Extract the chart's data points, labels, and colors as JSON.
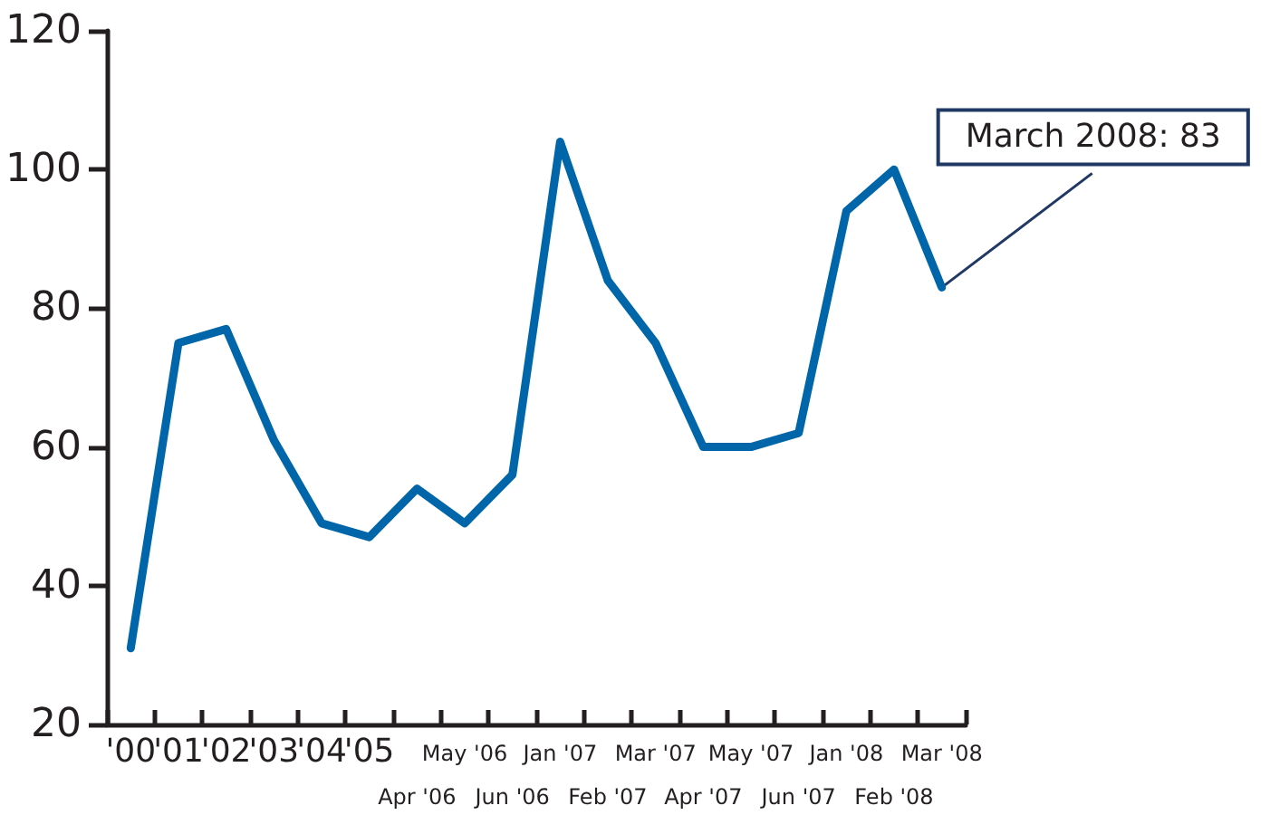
{
  "chart_data": {
    "type": "line",
    "categories": [
      "'00",
      "'01",
      "'02",
      "'03",
      "'04",
      "'05",
      "Apr '06",
      "May '06",
      "Jun '06",
      "Jan '07",
      "Feb '07",
      "Mar '07",
      "Apr '07",
      "May '07",
      "Jun '07",
      "Jan '08",
      "Feb '08",
      "Mar '08"
    ],
    "series": [
      {
        "color": "#0066aa",
        "values": [
          31,
          75,
          77,
          61,
          49,
          47,
          54,
          49,
          56,
          104,
          84,
          75,
          60,
          60,
          62,
          94,
          100,
          83
        ]
      }
    ],
    "ylim": [
      20,
      120
    ],
    "yticks": [
      20,
      40,
      60,
      80,
      100,
      120
    ],
    "annotations": [
      {
        "text": "March 2008: 83",
        "x": "Mar '08",
        "y": 83
      }
    ],
    "grid": false,
    "marker": "none",
    "line_style": "solid"
  }
}
